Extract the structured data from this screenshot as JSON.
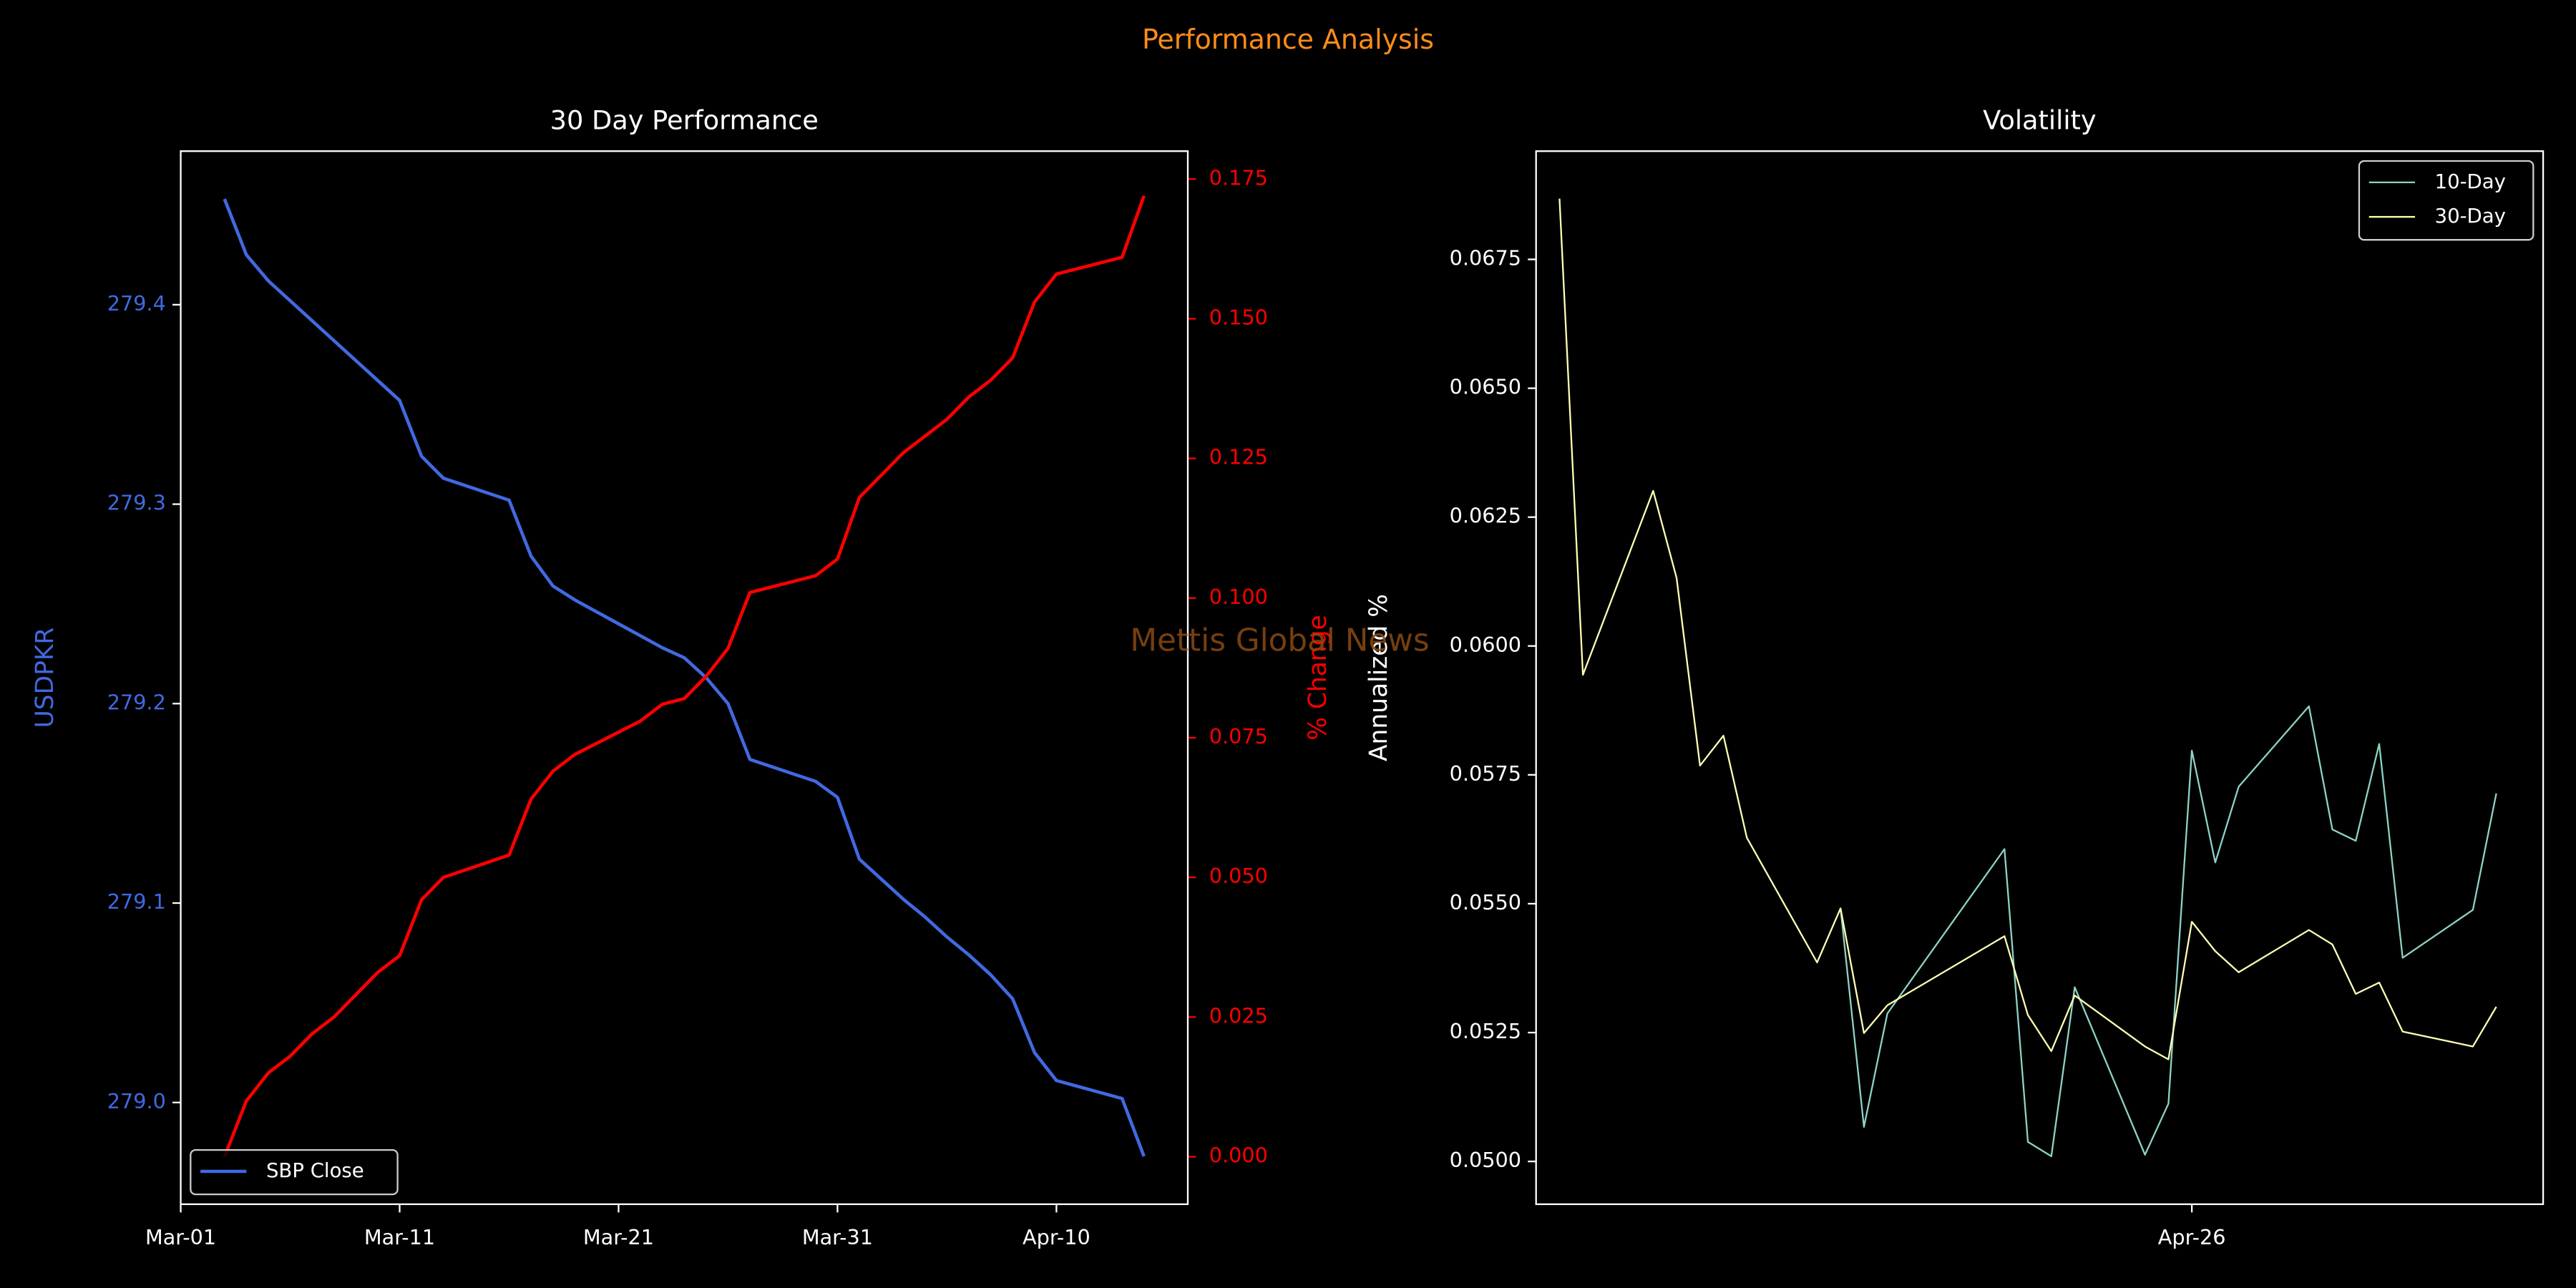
{
  "title": "Performance Analysis",
  "annotation": "Mettis Global News",
  "chart_data": [
    {
      "type": "line",
      "title": "30 Day Performance",
      "ylabel": "USDPKR",
      "y2label": "% Change",
      "legend": "lower left",
      "x": [
        "Mar-03",
        "Mar-04",
        "Mar-05",
        "Mar-06",
        "Mar-07",
        "Mar-08",
        "Mar-09",
        "Mar-10",
        "Mar-11",
        "Mar-12",
        "Mar-13",
        "Mar-16",
        "Mar-17",
        "Mar-18",
        "Mar-19",
        "Mar-20",
        "Mar-21",
        "Mar-22",
        "Mar-23",
        "Mar-24",
        "Mar-25",
        "Mar-26",
        "Mar-27",
        "Mar-30",
        "Mar-31",
        "Apr-01",
        "Apr-02",
        "Apr-03",
        "Apr-04",
        "Apr-05",
        "Apr-06",
        "Apr-07",
        "Apr-08",
        "Apr-09",
        "Apr-10",
        "Apr-13",
        "Apr-14"
      ],
      "series": [
        {
          "name": "SBP Close",
          "color": "#4169e1",
          "values": [
            279.453,
            279.425,
            279.412,
            279.402,
            279.392,
            279.382,
            279.372,
            279.362,
            279.352,
            279.324,
            279.313,
            279.302,
            279.274,
            279.259,
            279.252,
            279.246,
            279.24,
            279.234,
            279.228,
            279.223,
            279.213,
            279.2,
            279.172,
            279.161,
            279.153,
            279.122,
            279.112,
            279.102,
            279.093,
            279.083,
            279.074,
            279.064,
            279.052,
            279.025,
            279.011,
            279.002,
            278.973
          ]
        },
        {
          "color": "#ff0000",
          "axis": "y2",
          "values": [
            0,
            0.01,
            0.015,
            0.018,
            0.022,
            0.025,
            0.029,
            0.033,
            0.036,
            0.046,
            0.05,
            0.054,
            0.064,
            0.069,
            0.072,
            0.074,
            0.076,
            0.078,
            0.081,
            0.082,
            0.086,
            0.091,
            0.101,
            0.104,
            0.107,
            0.118,
            0.122,
            0.126,
            0.129,
            0.132,
            0.136,
            0.139,
            0.143,
            0.153,
            0.158,
            0.161,
            0.172
          ]
        }
      ],
      "xlim": [
        "Mar-01",
        "Apr-16"
      ],
      "xticks": [
        "Mar-01",
        "Mar-11",
        "Mar-21",
        "Mar-31",
        "Apr-10"
      ],
      "ylim": [
        278.949,
        279.477
      ],
      "yticks": [
        {
          "value": 279,
          "label": "279.0"
        },
        279.1,
        279.2,
        279.3,
        279.4
      ],
      "y2lim": [
        -0.0085,
        0.18
      ],
      "y2ticks": [
        {
          "value": 0,
          "label": "0.000"
        },
        0.025,
        {
          "value": 0.05,
          "label": "0.050"
        },
        {
          "value": 0.075,
          "label": "0.075"
        },
        {
          "value": 0.1,
          "label": "0.100"
        },
        0.125,
        {
          "value": 0.15,
          "label": "0.150"
        },
        0.175
      ]
    },
    {
      "type": "line",
      "title": "Volatility",
      "ylabel": "Annualized %",
      "legend": "upper right",
      "x": [
        "Mar-30",
        "Mar-31",
        "Apr-03",
        "Apr-04",
        "Apr-05",
        "Apr-06",
        "Apr-07",
        "Apr-10",
        "Apr-11",
        "Apr-12",
        "Apr-13",
        "Apr-18",
        "Apr-19",
        "Apr-20",
        "Apr-21",
        "Apr-24",
        "Apr-25",
        "Apr-26",
        "Apr-27",
        "Apr-28",
        "May-01",
        "May-02",
        "May-03",
        "May-04",
        "May-05",
        "May-08",
        "May-09"
      ],
      "series": [
        {
          "name": "10-Day",
          "color": "#8dd3c7",
          "values": [
            null,
            null,
            null,
            null,
            null,
            null,
            null,
            null,
            0.05491,
            0.05067,
            0.05287,
            0.05606,
            0.05038,
            0.0501,
            0.05338,
            0.05013,
            0.05112,
            0.05797,
            0.0558,
            0.05727,
            0.05883,
            0.05644,
            0.05622,
            0.0581,
            0.05395,
            0.05488,
            0.05714
          ]
        },
        {
          "name": "30-Day",
          "color": "#ffffb3",
          "values": [
            0.06868,
            0.05944,
            0.06301,
            0.06132,
            0.05768,
            0.05826,
            0.05628,
            0.05386,
            0.05491,
            0.05249,
            0.05303,
            0.05437,
            0.05284,
            0.05214,
            0.05322,
            0.05223,
            0.05198,
            0.05465,
            0.05408,
            0.05367,
            0.05449,
            0.05421,
            0.05325,
            0.05347,
            0.05252,
            0.05223,
            0.053
          ]
        }
      ],
      "xlim": [
        "Mar-29",
        "May-11"
      ],
      "xticks": [
        "Apr-26"
      ],
      "ylim": [
        0.04917,
        0.0696
      ],
      "yticks": [
        {
          "value": 0.05,
          "label": "0.0500"
        },
        {
          "value": 0.0525,
          "label": "0.0525"
        },
        {
          "value": 0.055,
          "label": "0.0550"
        },
        {
          "value": 0.0575,
          "label": "0.0575"
        },
        {
          "value": 0.06,
          "label": "0.0600"
        },
        {
          "value": 0.0625,
          "label": "0.0625"
        },
        {
          "value": 0.065,
          "label": "0.0650"
        },
        {
          "value": 0.0675,
          "label": "0.0675"
        }
      ]
    }
  ]
}
